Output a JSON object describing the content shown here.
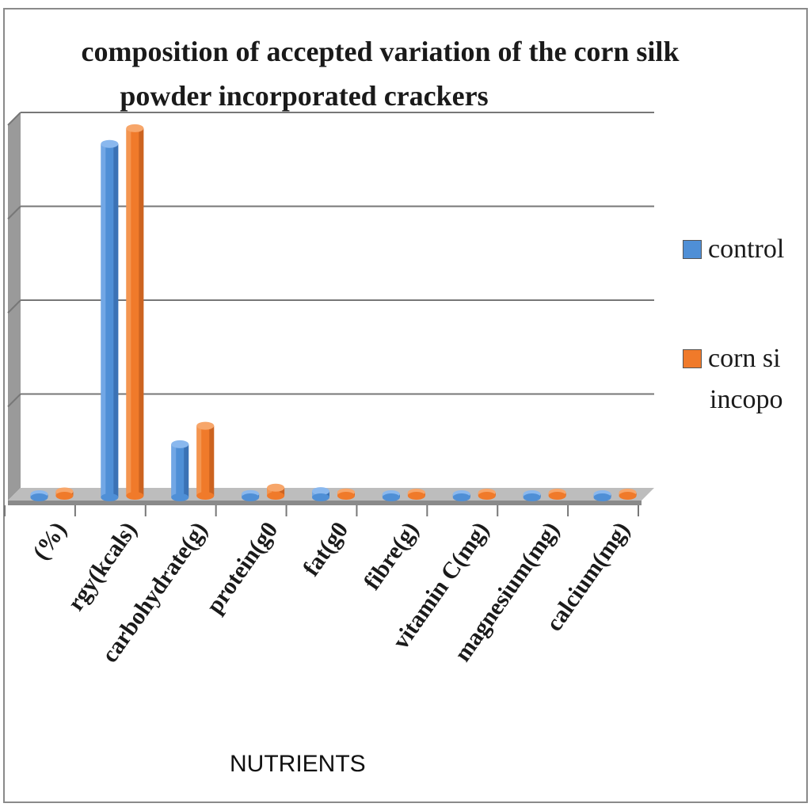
{
  "chart_data": {
    "type": "bar",
    "title": "composition  of accepted  variation  of the  corn silk powder  incorporated   crackers",
    "title_lines": [
      "composition  of accepted  variation  of the  corn silk",
      "powder  incorporated   crackers"
    ],
    "xlabel": "NUTRIENTS",
    "ylabel": "",
    "categories": [
      "(%)",
      "rgy(kcals)",
      "carbohydrate(g)",
      "protein(g0",
      "fat(g0",
      "fibre(g)",
      "vitamin C(mg)",
      "magnesium(mg)",
      "calcium(mg)"
    ],
    "series": [
      {
        "name": "control",
        "color": "#4f8fd6",
        "values": [
          5,
          380,
          60,
          7,
          10,
          3,
          2,
          1,
          1
        ]
      },
      {
        "name": "corn silk incoporated",
        "color": "#f07a2a",
        "values": [
          8,
          395,
          78,
          12,
          7,
          4,
          3,
          2,
          2
        ]
      }
    ],
    "ylim": [
      0,
      400
    ],
    "grid": true,
    "legend_position": "right"
  },
  "legend": {
    "control_label": "control",
    "corn_label_line1": "corn si",
    "corn_label_line2": "incopo"
  }
}
